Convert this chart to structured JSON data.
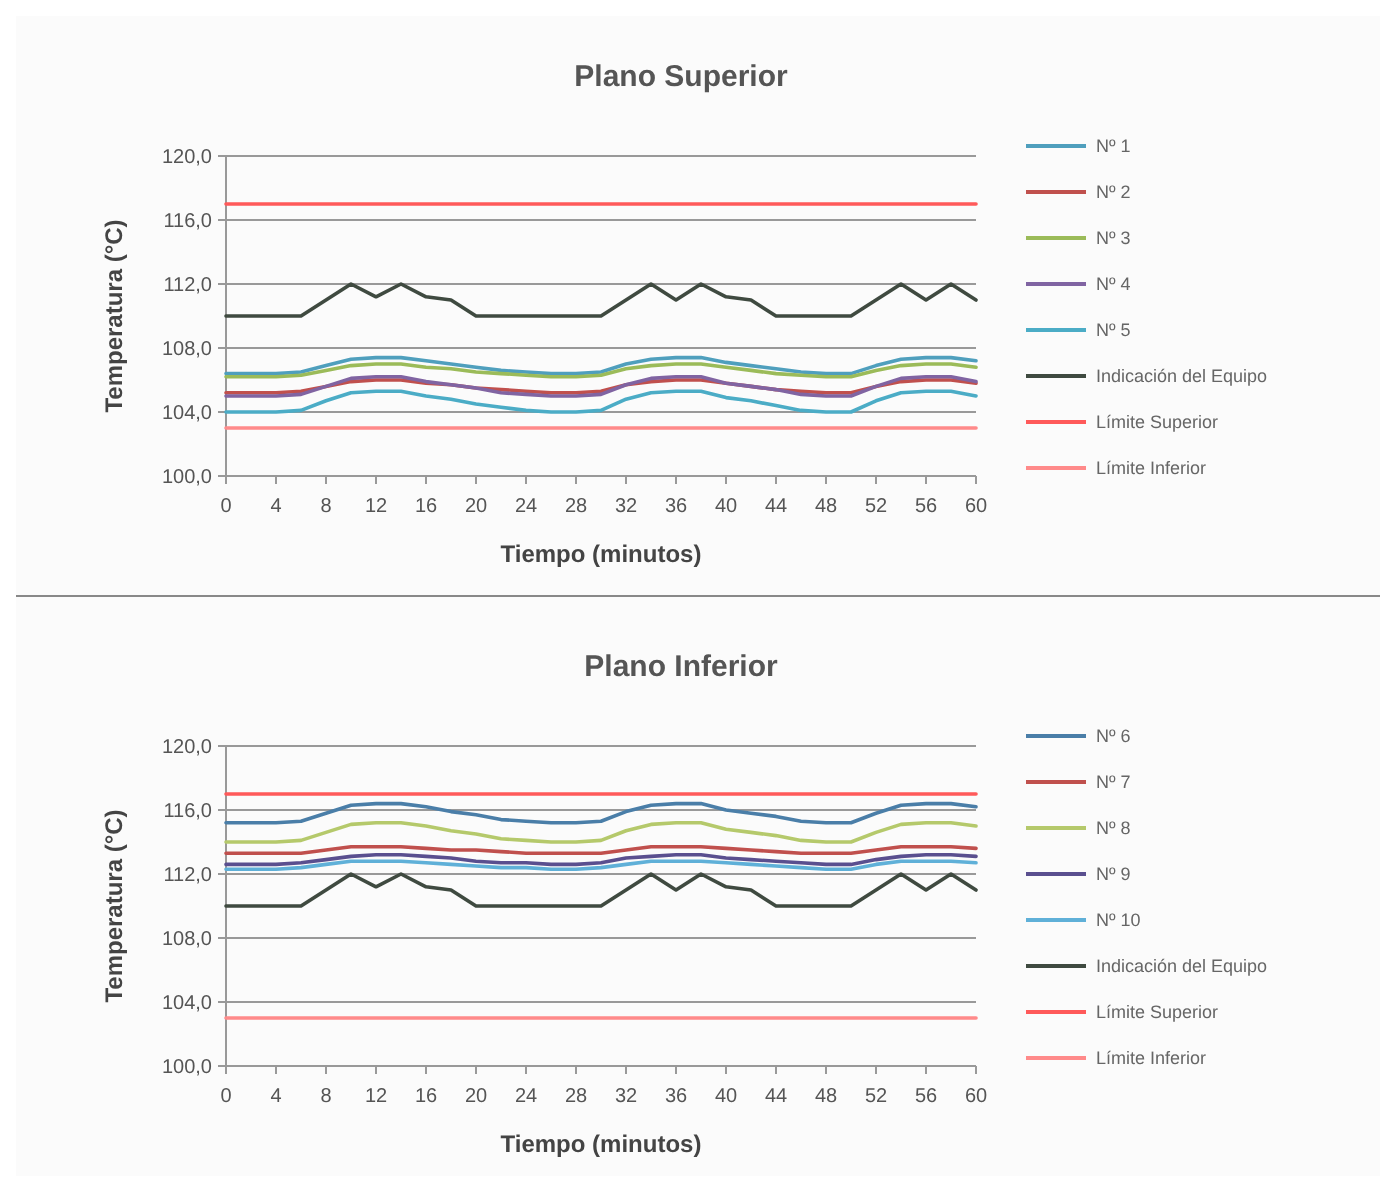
{
  "chart_data": [
    {
      "type": "line",
      "title": "Plano Superior",
      "xlabel": "Tiempo (minutos)",
      "ylabel": "Temperatura (°C)",
      "x": [
        0,
        2,
        4,
        6,
        8,
        10,
        12,
        14,
        16,
        18,
        20,
        22,
        24,
        26,
        28,
        30,
        32,
        34,
        36,
        38,
        40,
        42,
        44,
        46,
        48,
        50,
        52,
        54,
        56,
        58,
        60
      ],
      "xlim": [
        0,
        60
      ],
      "xticks": [
        0,
        4,
        8,
        12,
        16,
        20,
        24,
        28,
        32,
        36,
        40,
        44,
        48,
        52,
        56,
        60
      ],
      "ylim": [
        100,
        120
      ],
      "yticks": [
        {
          "value": 100,
          "label": "100,0"
        },
        {
          "value": 104,
          "label": "104,0"
        },
        {
          "value": 108,
          "label": "108,0"
        },
        {
          "value": 112,
          "label": "112,0"
        },
        {
          "value": 116,
          "label": "116,0"
        },
        {
          "value": 120,
          "label": "120,0"
        }
      ],
      "grid": "y",
      "legend": "right",
      "marker": "none",
      "line_style": "solid",
      "series": [
        {
          "name": "Nº 1",
          "color": "#4f9fbd",
          "values": [
            106.4,
            106.4,
            106.4,
            106.5,
            106.9,
            107.3,
            107.4,
            107.4,
            107.2,
            107.0,
            106.8,
            106.6,
            106.5,
            106.4,
            106.4,
            106.5,
            107.0,
            107.3,
            107.4,
            107.4,
            107.1,
            106.9,
            106.7,
            106.5,
            106.4,
            106.4,
            106.9,
            107.3,
            107.4,
            107.4,
            107.2
          ]
        },
        {
          "name": "Nº 2",
          "color": "#c0504d",
          "values": [
            105.2,
            105.2,
            105.2,
            105.3,
            105.6,
            105.9,
            106.0,
            106.0,
            105.8,
            105.7,
            105.5,
            105.4,
            105.3,
            105.2,
            105.2,
            105.3,
            105.7,
            105.9,
            106.0,
            106.0,
            105.8,
            105.6,
            105.4,
            105.3,
            105.2,
            105.2,
            105.6,
            105.9,
            106.0,
            106.0,
            105.8
          ]
        },
        {
          "name": "Nº 3",
          "color": "#9bbb59",
          "values": [
            106.2,
            106.2,
            106.2,
            106.3,
            106.6,
            106.9,
            107.0,
            107.0,
            106.8,
            106.7,
            106.5,
            106.4,
            106.3,
            106.2,
            106.2,
            106.3,
            106.7,
            106.9,
            107.0,
            107.0,
            106.8,
            106.6,
            106.4,
            106.3,
            106.2,
            106.2,
            106.6,
            106.9,
            107.0,
            107.0,
            106.8
          ]
        },
        {
          "name": "Nº 4",
          "color": "#8064a2",
          "values": [
            105.0,
            105.0,
            105.0,
            105.1,
            105.6,
            106.1,
            106.2,
            106.2,
            105.9,
            105.7,
            105.5,
            105.2,
            105.1,
            105.0,
            105.0,
            105.1,
            105.7,
            106.1,
            106.2,
            106.2,
            105.8,
            105.6,
            105.4,
            105.1,
            105.0,
            105.0,
            105.6,
            106.1,
            106.2,
            106.2,
            105.9
          ]
        },
        {
          "name": "Nº 5",
          "color": "#4bacc6",
          "values": [
            104.0,
            104.0,
            104.0,
            104.1,
            104.7,
            105.2,
            105.3,
            105.3,
            105.0,
            104.8,
            104.5,
            104.3,
            104.1,
            104.0,
            104.0,
            104.1,
            104.8,
            105.2,
            105.3,
            105.3,
            104.9,
            104.7,
            104.4,
            104.1,
            104.0,
            104.0,
            104.7,
            105.2,
            105.3,
            105.3,
            105.0
          ]
        },
        {
          "name": "Indicación del Equipo",
          "color": "#3f4a40",
          "values": [
            110,
            110,
            110,
            110,
            111,
            112,
            111.2,
            112,
            111.2,
            111,
            110,
            110,
            110,
            110,
            110,
            110,
            111,
            112,
            111,
            112,
            111.2,
            111,
            110,
            110,
            110,
            110,
            111,
            112,
            111,
            112,
            111
          ]
        },
        {
          "name": "Límite Superior",
          "color": "#ff5a5a",
          "values": [
            117,
            117,
            117,
            117,
            117,
            117,
            117,
            117,
            117,
            117,
            117,
            117,
            117,
            117,
            117,
            117,
            117,
            117,
            117,
            117,
            117,
            117,
            117,
            117,
            117,
            117,
            117,
            117,
            117,
            117,
            117
          ]
        },
        {
          "name": "Límite Inferior",
          "color": "#ff8a8a",
          "values": [
            103,
            103,
            103,
            103,
            103,
            103,
            103,
            103,
            103,
            103,
            103,
            103,
            103,
            103,
            103,
            103,
            103,
            103,
            103,
            103,
            103,
            103,
            103,
            103,
            103,
            103,
            103,
            103,
            103,
            103,
            103
          ]
        }
      ]
    },
    {
      "type": "line",
      "title": "Plano Inferior",
      "xlabel": "Tiempo (minutos)",
      "ylabel": "Temperatura (°C)",
      "x": [
        0,
        2,
        4,
        6,
        8,
        10,
        12,
        14,
        16,
        18,
        20,
        22,
        24,
        26,
        28,
        30,
        32,
        34,
        36,
        38,
        40,
        42,
        44,
        46,
        48,
        50,
        52,
        54,
        56,
        58,
        60
      ],
      "xlim": [
        0,
        60
      ],
      "xticks": [
        0,
        4,
        8,
        12,
        16,
        20,
        24,
        28,
        32,
        36,
        40,
        44,
        48,
        52,
        56,
        60
      ],
      "ylim": [
        100,
        120
      ],
      "yticks": [
        {
          "value": 100,
          "label": "100,0"
        },
        {
          "value": 104,
          "label": "104,0"
        },
        {
          "value": 108,
          "label": "108,0"
        },
        {
          "value": 112,
          "label": "112,0"
        },
        {
          "value": 116,
          "label": "116,0"
        },
        {
          "value": 120,
          "label": "120,0"
        }
      ],
      "grid": "y",
      "legend": "right",
      "marker": "none",
      "line_style": "solid",
      "series": [
        {
          "name": "Nº 6",
          "color": "#4a7ea8",
          "values": [
            115.2,
            115.2,
            115.2,
            115.3,
            115.8,
            116.3,
            116.4,
            116.4,
            116.2,
            115.9,
            115.7,
            115.4,
            115.3,
            115.2,
            115.2,
            115.3,
            115.9,
            116.3,
            116.4,
            116.4,
            116.0,
            115.8,
            115.6,
            115.3,
            115.2,
            115.2,
            115.8,
            116.3,
            116.4,
            116.4,
            116.2
          ]
        },
        {
          "name": "Nº 7",
          "color": "#c0504d",
          "values": [
            113.3,
            113.3,
            113.3,
            113.3,
            113.5,
            113.7,
            113.7,
            113.7,
            113.6,
            113.5,
            113.5,
            113.4,
            113.3,
            113.3,
            113.3,
            113.3,
            113.5,
            113.7,
            113.7,
            113.7,
            113.6,
            113.5,
            113.4,
            113.3,
            113.3,
            113.3,
            113.5,
            113.7,
            113.7,
            113.7,
            113.6
          ]
        },
        {
          "name": "Nº 8",
          "color": "#b5c96b",
          "values": [
            114.0,
            114.0,
            114.0,
            114.1,
            114.6,
            115.1,
            115.2,
            115.2,
            115.0,
            114.7,
            114.5,
            114.2,
            114.1,
            114.0,
            114.0,
            114.1,
            114.7,
            115.1,
            115.2,
            115.2,
            114.8,
            114.6,
            114.4,
            114.1,
            114.0,
            114.0,
            114.6,
            115.1,
            115.2,
            115.2,
            115.0
          ]
        },
        {
          "name": "Nº 9",
          "color": "#5a4f8f",
          "values": [
            112.6,
            112.6,
            112.6,
            112.7,
            112.9,
            113.1,
            113.2,
            113.2,
            113.1,
            113.0,
            112.8,
            112.7,
            112.7,
            112.6,
            112.6,
            112.7,
            113.0,
            113.1,
            113.2,
            113.2,
            113.0,
            112.9,
            112.8,
            112.7,
            112.6,
            112.6,
            112.9,
            113.1,
            113.2,
            113.2,
            113.1
          ]
        },
        {
          "name": "Nº 10",
          "color": "#5fb0d8",
          "values": [
            112.3,
            112.3,
            112.3,
            112.4,
            112.6,
            112.8,
            112.8,
            112.8,
            112.7,
            112.6,
            112.5,
            112.4,
            112.4,
            112.3,
            112.3,
            112.4,
            112.6,
            112.8,
            112.8,
            112.8,
            112.7,
            112.6,
            112.5,
            112.4,
            112.3,
            112.3,
            112.6,
            112.8,
            112.8,
            112.8,
            112.7
          ]
        },
        {
          "name": "Indicación del Equipo",
          "color": "#3f4a40",
          "values": [
            110,
            110,
            110,
            110,
            111,
            112,
            111.2,
            112,
            111.2,
            111,
            110,
            110,
            110,
            110,
            110,
            110,
            111,
            112,
            111,
            112,
            111.2,
            111,
            110,
            110,
            110,
            110,
            111,
            112,
            111,
            112,
            111
          ]
        },
        {
          "name": "Límite Superior",
          "color": "#ff5a5a",
          "values": [
            117,
            117,
            117,
            117,
            117,
            117,
            117,
            117,
            117,
            117,
            117,
            117,
            117,
            117,
            117,
            117,
            117,
            117,
            117,
            117,
            117,
            117,
            117,
            117,
            117,
            117,
            117,
            117,
            117,
            117,
            117
          ]
        },
        {
          "name": "Límite Inferior",
          "color": "#ff8a8a",
          "values": [
            103,
            103,
            103,
            103,
            103,
            103,
            103,
            103,
            103,
            103,
            103,
            103,
            103,
            103,
            103,
            103,
            103,
            103,
            103,
            103,
            103,
            103,
            103,
            103,
            103,
            103,
            103,
            103,
            103,
            103,
            103
          ]
        }
      ]
    }
  ]
}
